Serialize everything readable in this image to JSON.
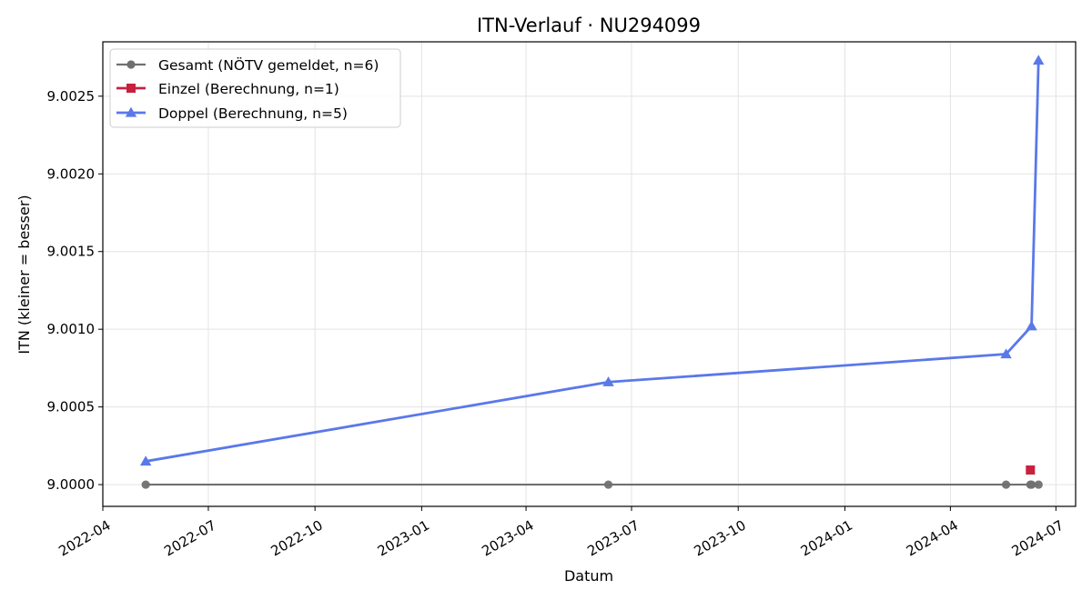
{
  "chart_data": {
    "type": "line",
    "title": "ITN-Verlauf · NU294099",
    "xlabel": "Datum",
    "ylabel": "ITN  (kleiner = besser)",
    "xlim": [
      "2022-04-01",
      "2024-07-18"
    ],
    "ylim": [
      8.99986,
      9.00285
    ],
    "x_ticks": [
      "2022-04",
      "2022-07",
      "2022-10",
      "2023-01",
      "2023-04",
      "2023-07",
      "2023-10",
      "2024-01",
      "2024-04",
      "2024-07"
    ],
    "x_tick_dates": [
      "2022-04-01",
      "2022-07-01",
      "2022-10-01",
      "2023-01-01",
      "2023-04-01",
      "2023-07-01",
      "2023-10-01",
      "2024-01-01",
      "2024-04-01",
      "2024-07-01"
    ],
    "y_ticks": [
      "9.0000",
      "9.0005",
      "9.0010",
      "9.0015",
      "9.0020",
      "9.0025"
    ],
    "y_tick_values": [
      9.0,
      9.0005,
      9.001,
      9.0015,
      9.002,
      9.0025
    ],
    "grid": true,
    "legend_position": "top-left",
    "series": [
      {
        "name": "Gesamt (NÖTV gemeldet, n=6)",
        "color": "#707070",
        "marker": "circle",
        "points": [
          {
            "x": "2022-05-08",
            "y": 9.0
          },
          {
            "x": "2023-06-11",
            "y": 9.0
          },
          {
            "x": "2024-05-19",
            "y": 9.0
          },
          {
            "x": "2024-06-09",
            "y": 9.0
          },
          {
            "x": "2024-06-10",
            "y": 9.0
          },
          {
            "x": "2024-06-16",
            "y": 9.0
          }
        ]
      },
      {
        "name": "Einzel (Berechnung, n=1)",
        "color": "#c8203f",
        "marker": "square",
        "points": [
          {
            "x": "2024-06-09",
            "y": 9.000094
          }
        ]
      },
      {
        "name": "Doppel (Berechnung, n=5)",
        "color": "#5a78ea",
        "marker": "triangle",
        "points": [
          {
            "x": "2022-05-08",
            "y": 9.00015
          },
          {
            "x": "2023-06-11",
            "y": 9.00066
          },
          {
            "x": "2024-05-19",
            "y": 9.00084
          },
          {
            "x": "2024-06-10",
            "y": 9.00102
          },
          {
            "x": "2024-06-16",
            "y": 9.00273
          }
        ]
      }
    ]
  }
}
